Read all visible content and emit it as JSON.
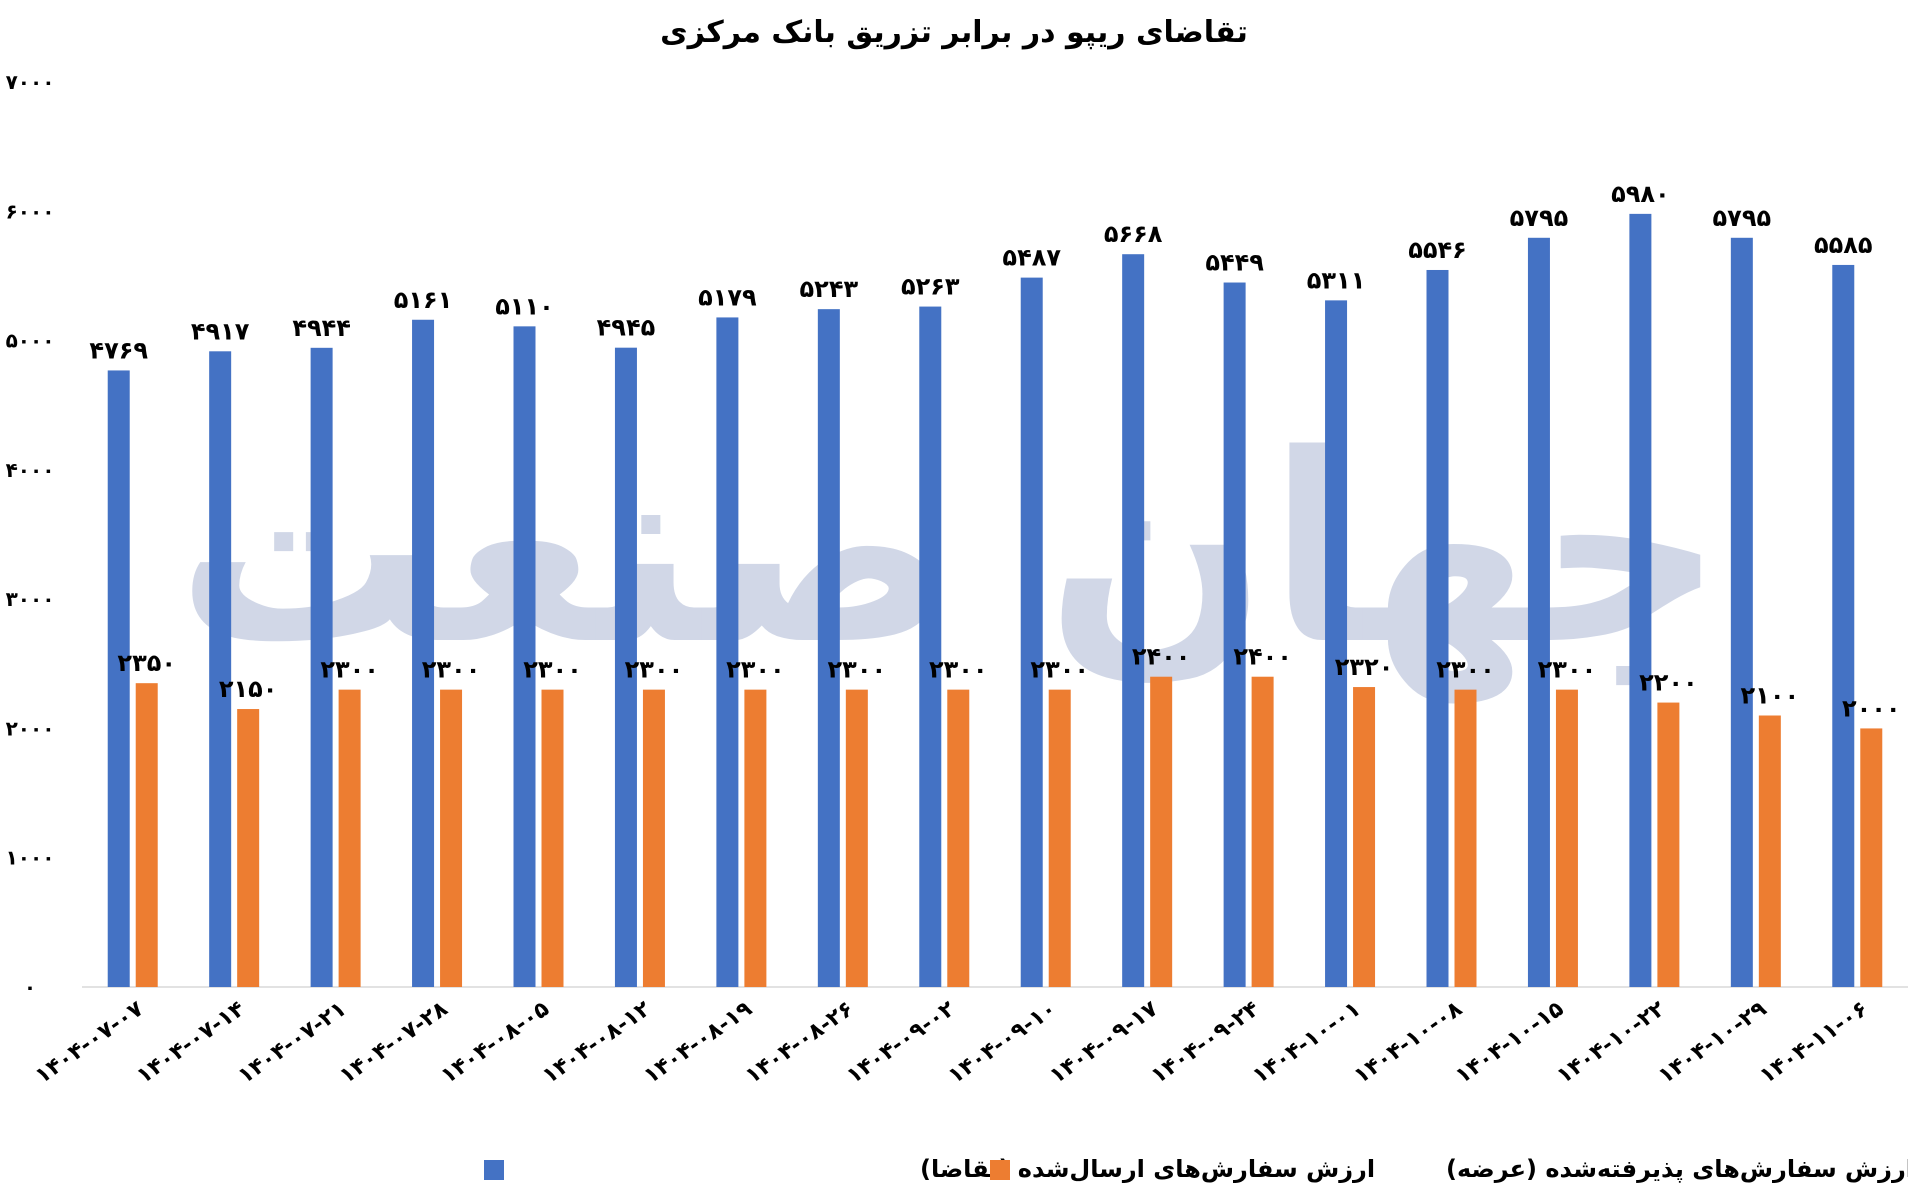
{
  "chart_data": {
    "type": "bar",
    "title": "تقاضای ریپو در برابر تزریق بانک مرکزی",
    "watermark": "جهان صنعت",
    "categories": [
      "۱۴۰۴-۰۷-۰۷",
      "۱۴۰۴-۰۷-۱۴",
      "۱۴۰۴-۰۷-۲۱",
      "۱۴۰۴-۰۷-۲۸",
      "۱۴۰۴-۰۸-۰۵",
      "۱۴۰۴-۰۸-۱۲",
      "۱۴۰۴-۰۸-۱۹",
      "۱۴۰۴-۰۸-۲۶",
      "۱۴۰۴-۰۹-۰۲",
      "۱۴۰۴-۰۹-۱۰",
      "۱۴۰۴-۰۹-۱۷",
      "۱۴۰۴-۰۹-۲۴",
      "۱۴۰۴-۱۰-۰۱",
      "۱۴۰۴-۱۰-۰۸",
      "۱۴۰۴-۱۰-۱۵",
      "۱۴۰۴-۱۰-۲۲",
      "۱۴۰۴-۱۰-۲۹",
      "۱۴۰۴-۱۱-۰۶"
    ],
    "series": [
      {
        "name": "ارزش سفارش‌های ارسال‌شده (تقاضا)",
        "color": "#4472c4",
        "values": [
          4769,
          4917,
          4944,
          5161,
          5110,
          4945,
          5179,
          5243,
          5263,
          5487,
          5668,
          5449,
          5311,
          5546,
          5795,
          5980,
          5795,
          5585
        ],
        "labels": [
          "۴۷۶۹",
          "۴۹۱۷",
          "۴۹۴۴",
          "۵۱۶۱",
          "۵۱۱۰",
          "۴۹۴۵",
          "۵۱۷۹",
          "۵۲۴۳",
          "۵۲۶۳",
          "۵۴۸۷",
          "۵۶۶۸",
          "۵۴۴۹",
          "۵۳۱۱",
          "۵۵۴۶",
          "۵۷۹۵",
          "۵۹۸۰",
          "۵۷۹۵",
          "۵۵۸۵"
        ]
      },
      {
        "name": "ارزش سفارش‌های پذیرفته‌شده (عرضه)",
        "color": "#ed7d31",
        "values": [
          2350,
          2150,
          2300,
          2300,
          2300,
          2300,
          2300,
          2300,
          2300,
          2300,
          2400,
          2400,
          2320,
          2300,
          2300,
          2200,
          2100,
          2000
        ],
        "labels": [
          "۲۳۵۰",
          "۲۱۵۰",
          "۲۳۰۰",
          "۲۳۰۰",
          "۲۳۰۰",
          "۲۳۰۰",
          "۲۳۰۰",
          "۲۳۰۰",
          "۲۳۰۰",
          "۲۳۰۰",
          "۲۴۰۰",
          "۲۴۰۰",
          "۲۳۲۰",
          "۲۳۰۰",
          "۲۳۰۰",
          "۲۲۰۰",
          "۲۱۰۰",
          "۲۰۰۰"
        ]
      }
    ],
    "ylim": [
      0,
      7000
    ],
    "yticks": [
      0,
      1000,
      2000,
      3000,
      4000,
      5000,
      6000,
      7000
    ],
    "ytick_labels": [
      "۰",
      "۱۰۰۰",
      "۲۰۰۰",
      "۳۰۰۰",
      "۴۰۰۰",
      "۵۰۰۰",
      "۶۰۰۰",
      "۷۰۰۰"
    ],
    "grid": false,
    "legend_position": "bottom"
  }
}
